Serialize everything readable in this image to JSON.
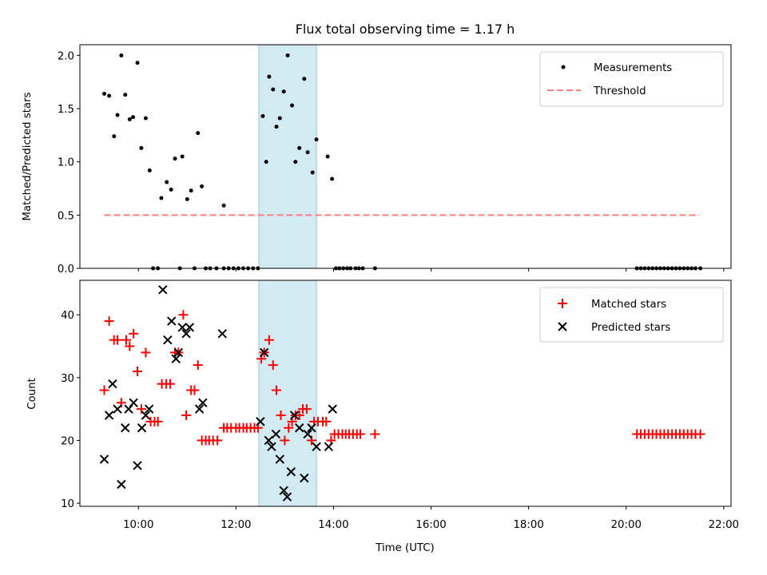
{
  "chart_data": [
    {
      "type": "scatter",
      "title": "Flux total observing time = 1.17 h",
      "xlabel": "",
      "ylabel": "Matched/Predicted stars",
      "xlim": [
        8.8,
        22.15
      ],
      "ylim": [
        0.0,
        2.1
      ],
      "yticks": [
        0.0,
        0.5,
        1.0,
        1.5,
        2.0
      ],
      "ytick_labels": [
        "0.0",
        "0.5",
        "1.0",
        "1.5",
        "2.0"
      ],
      "xticks": [
        10,
        12,
        14,
        16,
        18,
        20,
        22
      ],
      "shaded_span": [
        12.47,
        13.65
      ],
      "shaded_color": "#add8e6",
      "legend": {
        "position": "top-right",
        "entries": [
          "Measurements",
          "Threshold"
        ]
      },
      "threshold": {
        "name": "Threshold",
        "x": [
          9.3,
          21.5
        ],
        "y": 0.5,
        "color": "#ff7f7f",
        "style": "dashed"
      },
      "series": [
        {
          "name": "Measurements",
          "color": "#000000",
          "marker": "dot",
          "points": [
            [
              9.3,
              1.64
            ],
            [
              9.4,
              1.62
            ],
            [
              9.5,
              1.24
            ],
            [
              9.57,
              1.44
            ],
            [
              9.65,
              2.0
            ],
            [
              9.73,
              1.63
            ],
            [
              9.82,
              1.4
            ],
            [
              9.89,
              1.42
            ],
            [
              9.98,
              1.93
            ],
            [
              10.06,
              1.13
            ],
            [
              10.15,
              1.41
            ],
            [
              10.23,
              0.92
            ],
            [
              10.47,
              0.66
            ],
            [
              10.58,
              0.81
            ],
            [
              10.67,
              0.74
            ],
            [
              10.75,
              1.03
            ],
            [
              10.9,
              1.05
            ],
            [
              11.0,
              0.65
            ],
            [
              11.08,
              0.73
            ],
            [
              11.22,
              1.27
            ],
            [
              11.3,
              0.77
            ],
            [
              11.75,
              0.59
            ],
            [
              12.55,
              1.43
            ],
            [
              12.62,
              1.0
            ],
            [
              12.68,
              1.8
            ],
            [
              12.76,
              1.68
            ],
            [
              12.83,
              1.33
            ],
            [
              12.9,
              1.41
            ],
            [
              12.98,
              1.66
            ],
            [
              13.06,
              2.0
            ],
            [
              13.15,
              1.53
            ],
            [
              13.22,
              1.0
            ],
            [
              13.3,
              1.13
            ],
            [
              13.4,
              1.78
            ],
            [
              13.47,
              1.09
            ],
            [
              13.57,
              0.9
            ],
            [
              13.65,
              1.21
            ],
            [
              13.88,
              1.05
            ],
            [
              13.97,
              0.84
            ],
            [
              10.3,
              0.0
            ],
            [
              10.4,
              0.0
            ],
            [
              10.85,
              0.0
            ],
            [
              11.15,
              0.0
            ],
            [
              11.38,
              0.0
            ],
            [
              11.47,
              0.0
            ],
            [
              11.6,
              0.0
            ],
            [
              11.75,
              0.0
            ],
            [
              11.85,
              0.0
            ],
            [
              11.95,
              0.0
            ],
            [
              12.05,
              0.0
            ],
            [
              12.15,
              0.0
            ],
            [
              12.25,
              0.0
            ],
            [
              12.35,
              0.0
            ],
            [
              12.45,
              0.0
            ],
            [
              14.05,
              0.0
            ],
            [
              14.12,
              0.0
            ],
            [
              14.2,
              0.0
            ],
            [
              14.28,
              0.0
            ],
            [
              14.35,
              0.0
            ],
            [
              14.45,
              0.0
            ],
            [
              14.52,
              0.0
            ],
            [
              14.6,
              0.0
            ],
            [
              14.85,
              0.0
            ],
            [
              20.22,
              0.0
            ],
            [
              20.3,
              0.0
            ],
            [
              20.38,
              0.0
            ],
            [
              20.46,
              0.0
            ],
            [
              20.54,
              0.0
            ],
            [
              20.62,
              0.0
            ],
            [
              20.7,
              0.0
            ],
            [
              20.78,
              0.0
            ],
            [
              20.86,
              0.0
            ],
            [
              20.94,
              0.0
            ],
            [
              21.02,
              0.0
            ],
            [
              21.1,
              0.0
            ],
            [
              21.18,
              0.0
            ],
            [
              21.26,
              0.0
            ],
            [
              21.34,
              0.0
            ],
            [
              21.42,
              0.0
            ],
            [
              21.52,
              0.0
            ]
          ]
        }
      ]
    },
    {
      "type": "scatter",
      "title": "",
      "xlabel": "Time (UTC)",
      "ylabel": "Count",
      "xlim": [
        8.8,
        22.15
      ],
      "ylim": [
        9.5,
        45.5
      ],
      "yticks": [
        10,
        20,
        30,
        40
      ],
      "ytick_labels": [
        "10",
        "20",
        "30",
        "40"
      ],
      "xticks": [
        10,
        12,
        14,
        16,
        18,
        20,
        22
      ],
      "xtick_labels": [
        "10:00",
        "12:00",
        "14:00",
        "16:00",
        "18:00",
        "20:00",
        "22:00"
      ],
      "shaded_span": [
        12.47,
        13.65
      ],
      "shaded_color": "#add8e6",
      "legend": {
        "position": "top-right",
        "entries": [
          "Matched stars",
          "Predicted stars"
        ]
      },
      "series": [
        {
          "name": "Matched stars",
          "color": "#ff0000",
          "marker": "plus",
          "points": [
            [
              9.3,
              28
            ],
            [
              9.4,
              39
            ],
            [
              9.5,
              36
            ],
            [
              9.57,
              36
            ],
            [
              9.65,
              26
            ],
            [
              9.75,
              36
            ],
            [
              9.82,
              35
            ],
            [
              9.9,
              37
            ],
            [
              9.98,
              31
            ],
            [
              10.06,
              25
            ],
            [
              10.15,
              34
            ],
            [
              10.25,
              23
            ],
            [
              10.33,
              23
            ],
            [
              10.4,
              23
            ],
            [
              10.48,
              29
            ],
            [
              10.57,
              29
            ],
            [
              10.65,
              29
            ],
            [
              10.75,
              34
            ],
            [
              10.82,
              34
            ],
            [
              10.92,
              40
            ],
            [
              10.98,
              24
            ],
            [
              11.08,
              28
            ],
            [
              11.15,
              28
            ],
            [
              11.22,
              32
            ],
            [
              11.3,
              20
            ],
            [
              11.38,
              20
            ],
            [
              11.45,
              20
            ],
            [
              11.53,
              20
            ],
            [
              11.62,
              20
            ],
            [
              11.75,
              22
            ],
            [
              11.82,
              22
            ],
            [
              11.9,
              22
            ],
            [
              12.0,
              22
            ],
            [
              12.07,
              22
            ],
            [
              12.15,
              22
            ],
            [
              12.22,
              22
            ],
            [
              12.3,
              22
            ],
            [
              12.38,
              22
            ],
            [
              12.45,
              22
            ],
            [
              12.52,
              33
            ],
            [
              12.58,
              34
            ],
            [
              12.68,
              36
            ],
            [
              12.76,
              32
            ],
            [
              12.83,
              28
            ],
            [
              12.92,
              24
            ],
            [
              13.0,
              20
            ],
            [
              13.08,
              22
            ],
            [
              13.15,
              23
            ],
            [
              13.22,
              24
            ],
            [
              13.3,
              24
            ],
            [
              13.37,
              25
            ],
            [
              13.45,
              25
            ],
            [
              13.55,
              20
            ],
            [
              13.6,
              23
            ],
            [
              13.68,
              23
            ],
            [
              13.78,
              23
            ],
            [
              13.85,
              23
            ],
            [
              13.95,
              20
            ],
            [
              14.02,
              21
            ],
            [
              14.1,
              21
            ],
            [
              14.18,
              21
            ],
            [
              14.25,
              21
            ],
            [
              14.32,
              21
            ],
            [
              14.4,
              21
            ],
            [
              14.48,
              21
            ],
            [
              14.55,
              21
            ],
            [
              14.85,
              21
            ],
            [
              20.22,
              21
            ],
            [
              20.3,
              21
            ],
            [
              20.38,
              21
            ],
            [
              20.46,
              21
            ],
            [
              20.54,
              21
            ],
            [
              20.62,
              21
            ],
            [
              20.7,
              21
            ],
            [
              20.78,
              21
            ],
            [
              20.86,
              21
            ],
            [
              20.94,
              21
            ],
            [
              21.02,
              21
            ],
            [
              21.1,
              21
            ],
            [
              21.18,
              21
            ],
            [
              21.26,
              21
            ],
            [
              21.34,
              21
            ],
            [
              21.42,
              21
            ],
            [
              21.52,
              21
            ]
          ]
        },
        {
          "name": "Predicted stars",
          "color": "#000000",
          "marker": "x",
          "points": [
            [
              9.3,
              17
            ],
            [
              9.4,
              24
            ],
            [
              9.47,
              29
            ],
            [
              9.57,
              25
            ],
            [
              9.65,
              13
            ],
            [
              9.73,
              22
            ],
            [
              9.8,
              25
            ],
            [
              9.9,
              26
            ],
            [
              9.98,
              16
            ],
            [
              10.07,
              22
            ],
            [
              10.15,
              24
            ],
            [
              10.22,
              25
            ],
            [
              10.5,
              44
            ],
            [
              10.6,
              36
            ],
            [
              10.68,
              39
            ],
            [
              10.77,
              33
            ],
            [
              10.82,
              34
            ],
            [
              10.9,
              38
            ],
            [
              10.98,
              37
            ],
            [
              11.05,
              38
            ],
            [
              11.25,
              25
            ],
            [
              11.32,
              26
            ],
            [
              11.72,
              37
            ],
            [
              12.5,
              23
            ],
            [
              12.58,
              34
            ],
            [
              12.67,
              20
            ],
            [
              12.73,
              19
            ],
            [
              12.82,
              21
            ],
            [
              12.9,
              17
            ],
            [
              12.98,
              12
            ],
            [
              13.05,
              11
            ],
            [
              13.13,
              15
            ],
            [
              13.2,
              24
            ],
            [
              13.3,
              22
            ],
            [
              13.4,
              14
            ],
            [
              13.47,
              21
            ],
            [
              13.55,
              22
            ],
            [
              13.65,
              19
            ],
            [
              13.9,
              19
            ],
            [
              13.98,
              25
            ]
          ]
        }
      ]
    }
  ]
}
